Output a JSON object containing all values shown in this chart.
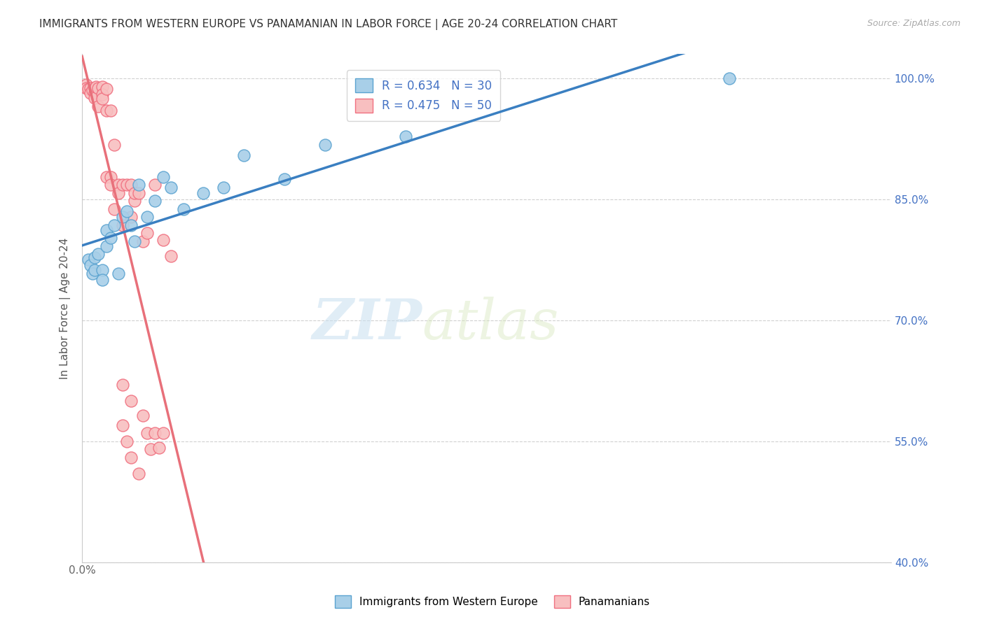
{
  "title": "IMMIGRANTS FROM WESTERN EUROPE VS PANAMANIAN IN LABOR FORCE | AGE 20-24 CORRELATION CHART",
  "source": "Source: ZipAtlas.com",
  "ylabel": "In Labor Force | Age 20-24",
  "xlim": [
    0.0,
    0.2
  ],
  "ylim": [
    0.4,
    1.03
  ],
  "yticks": [
    0.4,
    0.55,
    0.7,
    0.85,
    1.0
  ],
  "yticklabels": [
    "40.0%",
    "55.0%",
    "70.0%",
    "85.0%",
    "100.0%"
  ],
  "blue_R": 0.634,
  "blue_N": 30,
  "pink_R": 0.475,
  "pink_N": 50,
  "blue_color": "#a8cfe8",
  "pink_color": "#f8bfc0",
  "blue_edge_color": "#5ba3d0",
  "pink_edge_color": "#f07080",
  "blue_line_color": "#3a7fc1",
  "pink_line_color": "#e8707a",
  "legend_blue_label": "Immigrants from Western Europe",
  "legend_pink_label": "Panamanians",
  "watermark_zip": "ZIP",
  "watermark_atlas": "atlas",
  "blue_points": [
    [
      0.0015,
      0.775
    ],
    [
      0.002,
      0.768
    ],
    [
      0.0025,
      0.758
    ],
    [
      0.003,
      0.778
    ],
    [
      0.003,
      0.762
    ],
    [
      0.004,
      0.782
    ],
    [
      0.005,
      0.762
    ],
    [
      0.005,
      0.75
    ],
    [
      0.006,
      0.812
    ],
    [
      0.006,
      0.792
    ],
    [
      0.007,
      0.802
    ],
    [
      0.008,
      0.818
    ],
    [
      0.009,
      0.758
    ],
    [
      0.01,
      0.828
    ],
    [
      0.011,
      0.835
    ],
    [
      0.012,
      0.818
    ],
    [
      0.013,
      0.798
    ],
    [
      0.014,
      0.868
    ],
    [
      0.016,
      0.828
    ],
    [
      0.018,
      0.848
    ],
    [
      0.02,
      0.878
    ],
    [
      0.022,
      0.865
    ],
    [
      0.025,
      0.838
    ],
    [
      0.03,
      0.858
    ],
    [
      0.035,
      0.865
    ],
    [
      0.04,
      0.905
    ],
    [
      0.05,
      0.875
    ],
    [
      0.06,
      0.918
    ],
    [
      0.08,
      0.928
    ],
    [
      0.16,
      1.0
    ]
  ],
  "pink_points": [
    [
      0.001,
      0.992
    ],
    [
      0.001,
      0.988
    ],
    [
      0.0015,
      0.987
    ],
    [
      0.002,
      0.988
    ],
    [
      0.002,
      0.982
    ],
    [
      0.0025,
      0.985
    ],
    [
      0.003,
      0.988
    ],
    [
      0.003,
      0.982
    ],
    [
      0.003,
      0.976
    ],
    [
      0.0035,
      0.99
    ],
    [
      0.004,
      0.988
    ],
    [
      0.004,
      0.965
    ],
    [
      0.005,
      0.99
    ],
    [
      0.005,
      0.98
    ],
    [
      0.005,
      0.975
    ],
    [
      0.006,
      0.987
    ],
    [
      0.006,
      0.96
    ],
    [
      0.006,
      0.878
    ],
    [
      0.007,
      0.96
    ],
    [
      0.007,
      0.878
    ],
    [
      0.007,
      0.868
    ],
    [
      0.008,
      0.918
    ],
    [
      0.008,
      0.838
    ],
    [
      0.009,
      0.868
    ],
    [
      0.009,
      0.858
    ],
    [
      0.01,
      0.868
    ],
    [
      0.01,
      0.818
    ],
    [
      0.011,
      0.868
    ],
    [
      0.012,
      0.868
    ],
    [
      0.012,
      0.828
    ],
    [
      0.013,
      0.848
    ],
    [
      0.013,
      0.858
    ],
    [
      0.014,
      0.858
    ],
    [
      0.015,
      0.798
    ],
    [
      0.016,
      0.808
    ],
    [
      0.018,
      0.868
    ],
    [
      0.02,
      0.8
    ],
    [
      0.022,
      0.78
    ],
    [
      0.01,
      0.62
    ],
    [
      0.012,
      0.6
    ],
    [
      0.015,
      0.582
    ],
    [
      0.016,
      0.56
    ],
    [
      0.017,
      0.54
    ],
    [
      0.018,
      0.56
    ],
    [
      0.019,
      0.542
    ],
    [
      0.02,
      0.56
    ],
    [
      0.01,
      0.57
    ],
    [
      0.011,
      0.55
    ],
    [
      0.012,
      0.53
    ],
    [
      0.014,
      0.51
    ]
  ]
}
